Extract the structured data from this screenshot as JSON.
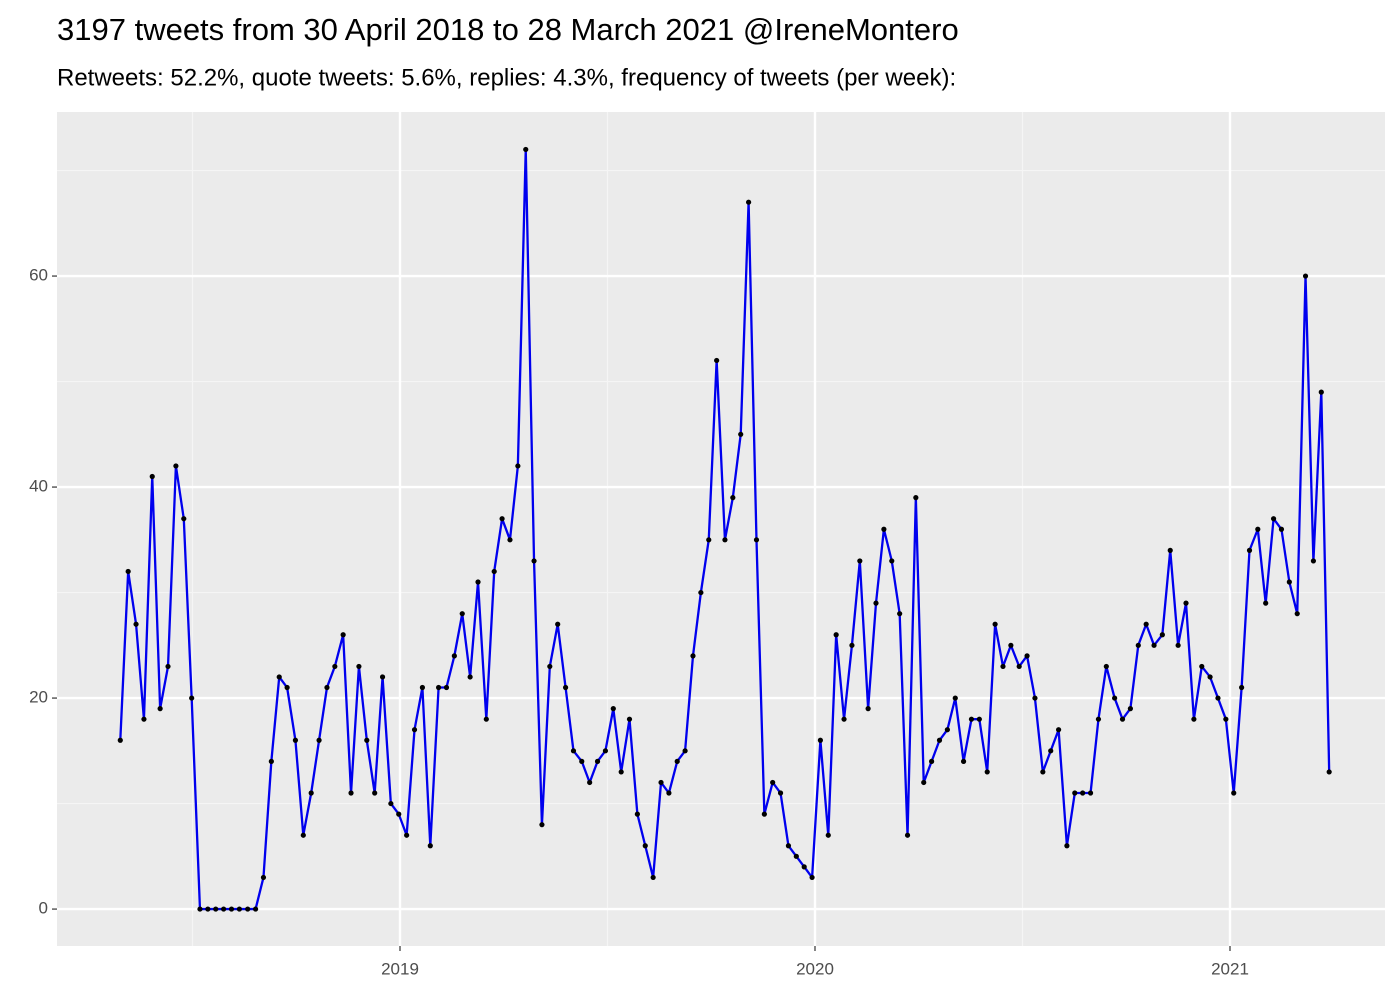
{
  "chart_data": {
    "type": "line",
    "title": "3197 tweets from 30 April 2018 to 28 March 2021 @IreneMontero",
    "subtitle": "Retweets: 52.2%, quote tweets: 5.6%, replies: 4.3%, frequency of tweets (per week):",
    "x": [
      2018.326,
      2018.345,
      2018.364,
      2018.383,
      2018.403,
      2018.422,
      2018.441,
      2018.46,
      2018.479,
      2018.498,
      2018.518,
      2018.537,
      2018.556,
      2018.575,
      2018.594,
      2018.613,
      2018.633,
      2018.652,
      2018.671,
      2018.69,
      2018.709,
      2018.728,
      2018.748,
      2018.767,
      2018.786,
      2018.805,
      2018.824,
      2018.843,
      2018.863,
      2018.882,
      2018.901,
      2018.92,
      2018.939,
      2018.958,
      2018.978,
      2018.997,
      2019.016,
      2019.035,
      2019.054,
      2019.073,
      2019.093,
      2019.112,
      2019.131,
      2019.15,
      2019.169,
      2019.188,
      2019.208,
      2019.227,
      2019.246,
      2019.265,
      2019.284,
      2019.303,
      2019.323,
      2019.342,
      2019.361,
      2019.38,
      2019.399,
      2019.418,
      2019.438,
      2019.457,
      2019.476,
      2019.495,
      2019.514,
      2019.533,
      2019.553,
      2019.572,
      2019.591,
      2019.61,
      2019.629,
      2019.648,
      2019.668,
      2019.687,
      2019.706,
      2019.725,
      2019.744,
      2019.763,
      2019.783,
      2019.802,
      2019.821,
      2019.84,
      2019.859,
      2019.878,
      2019.898,
      2019.917,
      2019.936,
      2019.955,
      2019.974,
      2019.993,
      2020.013,
      2020.032,
      2020.051,
      2020.07,
      2020.089,
      2020.108,
      2020.128,
      2020.147,
      2020.166,
      2020.185,
      2020.204,
      2020.223,
      2020.243,
      2020.262,
      2020.281,
      2020.3,
      2020.319,
      2020.338,
      2020.358,
      2020.377,
      2020.396,
      2020.415,
      2020.434,
      2020.453,
      2020.472,
      2020.492,
      2020.511,
      2020.53,
      2020.549,
      2020.568,
      2020.587,
      2020.607,
      2020.626,
      2020.645,
      2020.664,
      2020.683,
      2020.702,
      2020.722,
      2020.741,
      2020.76,
      2020.779,
      2020.798,
      2020.817,
      2020.837,
      2020.856,
      2020.875,
      2020.894,
      2020.913,
      2020.932,
      2020.952,
      2020.971,
      2020.99,
      2021.009,
      2021.028,
      2021.047,
      2021.067,
      2021.086,
      2021.105,
      2021.124,
      2021.143,
      2021.162,
      2021.182,
      2021.201,
      2021.22,
      2021.239
    ],
    "values": [
      16,
      32,
      27,
      18,
      41,
      19,
      23,
      42,
      37,
      20,
      0,
      0,
      0,
      0,
      0,
      0,
      0,
      0,
      3,
      14,
      22,
      21,
      16,
      7,
      11,
      16,
      21,
      23,
      26,
      11,
      23,
      16,
      11,
      22,
      10,
      9,
      7,
      17,
      21,
      6,
      21,
      21,
      24,
      28,
      22,
      31,
      18,
      32,
      37,
      35,
      42,
      72,
      33,
      8,
      23,
      27,
      21,
      15,
      14,
      12,
      14,
      15,
      19,
      13,
      18,
      9,
      6,
      3,
      12,
      11,
      14,
      15,
      24,
      30,
      35,
      52,
      35,
      39,
      45,
      67,
      35,
      9,
      12,
      11,
      6,
      5,
      4,
      3,
      16,
      7,
      26,
      18,
      25,
      33,
      19,
      29,
      36,
      33,
      28,
      7,
      39,
      12,
      14,
      16,
      17,
      20,
      14,
      18,
      18,
      13,
      27,
      23,
      25,
      23,
      24,
      20,
      13,
      15,
      17,
      6,
      11,
      11,
      11,
      18,
      23,
      20,
      18,
      19,
      25,
      27,
      25,
      26,
      34,
      25,
      29,
      18,
      23,
      22,
      20,
      18,
      11,
      21,
      34,
      36,
      29,
      37,
      36,
      31,
      28,
      60,
      33,
      49,
      13
    ],
    "color": "#0000ee",
    "point_color": "#000000",
    "xlim": [
      2018.1735,
      2021.3735
    ],
    "xticks": [
      2019,
      2020,
      2021
    ],
    "ylim": [
      -3.5,
      75.55
    ],
    "yticks": [
      0,
      20,
      40,
      60
    ],
    "grid": true
  }
}
